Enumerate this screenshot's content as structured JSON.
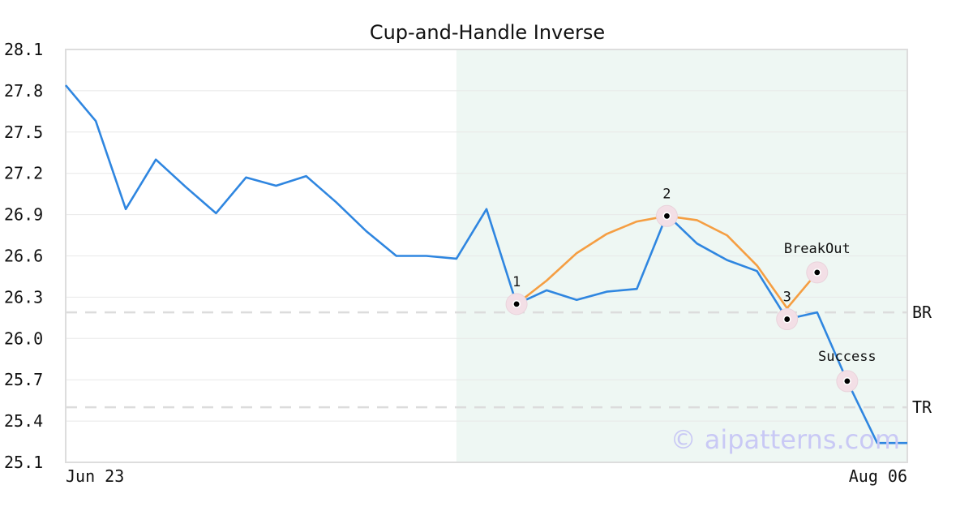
{
  "chart_data": {
    "type": "line",
    "title": "Cup-and-Handle Inverse",
    "xlabel": "",
    "ylabel": "",
    "x_tick_labels": [
      "Jun 23",
      "Aug 06"
    ],
    "y_ticks": [
      "28.1",
      "27.8",
      "27.5",
      "27.2",
      "26.9",
      "26.6",
      "26.3",
      "26.0",
      "25.7",
      "25.4",
      "25.1"
    ],
    "ylim": [
      25.1,
      28.1
    ],
    "grid": "horizontal",
    "series": [
      {
        "color": "#2f86e0",
        "values": [
          27.84,
          27.58,
          26.94,
          27.3,
          27.1,
          26.91,
          27.17,
          27.11,
          27.18,
          26.99,
          26.78,
          26.6,
          26.6,
          26.58,
          26.94,
          26.25,
          26.35,
          26.28,
          26.34,
          26.36,
          26.9,
          26.69,
          26.57,
          26.49,
          26.14,
          26.19,
          25.69,
          25.24,
          25.24
        ]
      }
    ],
    "pattern_line": {
      "color": "#f59e42",
      "points": [
        {
          "i": 15,
          "y": 26.25
        },
        {
          "i": 16,
          "y": 26.42
        },
        {
          "i": 17,
          "y": 26.62
        },
        {
          "i": 18,
          "y": 26.76
        },
        {
          "i": 19,
          "y": 26.85
        },
        {
          "i": 20,
          "y": 26.89
        },
        {
          "i": 21,
          "y": 26.86
        },
        {
          "i": 22,
          "y": 26.75
        },
        {
          "i": 23,
          "y": 26.53
        },
        {
          "i": 24,
          "y": 26.22
        },
        {
          "i": 25,
          "y": 26.48
        }
      ]
    },
    "shaded_region": {
      "start_index": 13,
      "end_index": 28,
      "color": "#eef7f3"
    },
    "levels": [
      {
        "label": "BR",
        "y": 26.19
      },
      {
        "label": "TR",
        "y": 25.5
      }
    ],
    "annotations": [
      {
        "label": "1",
        "i": 15,
        "y": 26.25,
        "label_pos": "above"
      },
      {
        "label": "2",
        "i": 20,
        "y": 26.89,
        "label_pos": "above"
      },
      {
        "label": "3",
        "i": 24,
        "y": 26.14,
        "label_pos": "above"
      },
      {
        "label": "BreakOut",
        "i": 25,
        "y": 26.48,
        "label_pos": "above-left"
      },
      {
        "label": "Success",
        "i": 26,
        "y": 25.69,
        "label_pos": "above"
      }
    ]
  },
  "watermark": "© aipatterns.com"
}
